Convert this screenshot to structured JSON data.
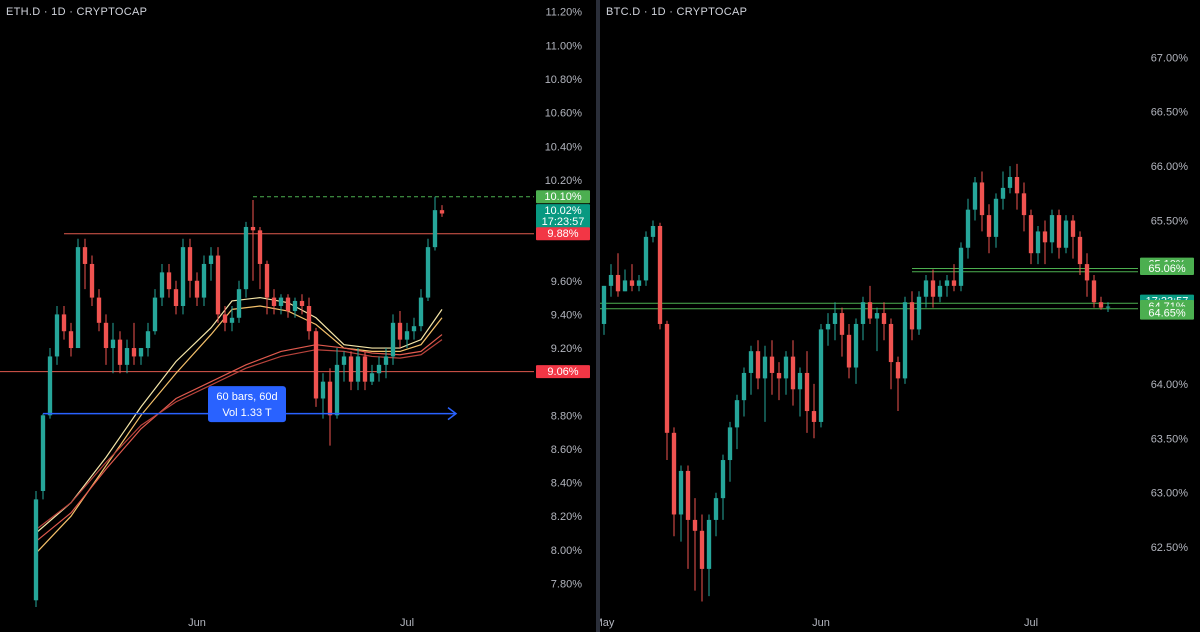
{
  "colors": {
    "up": "#26a69a",
    "down": "#ef5350",
    "ma_yellow": "#f5e6a8",
    "ma_orange": "#f4c06a",
    "ma_red1": "#e05a4e",
    "ma_red2": "#b8433c",
    "range_blue": "#2962ff",
    "label_green": "#4caf50",
    "label_teal": "#089981",
    "label_red": "#f23645"
  },
  "chart_data": [
    {
      "type": "candlestick",
      "title": "ETH.D · 1D · CRYPTOCAP",
      "y_unit": "%",
      "ylim": [
        7.66,
        11.24
      ],
      "y_ticks": [
        "11.20%",
        "11.00%",
        "10.80%",
        "10.60%",
        "10.40%",
        "10.20%",
        "9.60%",
        "9.40%",
        "9.20%",
        "8.80%",
        "8.60%",
        "8.40%",
        "8.20%",
        "8.00%",
        "7.80%"
      ],
      "y_tick_values": [
        11.2,
        11.0,
        10.8,
        10.6,
        10.4,
        10.2,
        9.6,
        9.4,
        9.2,
        8.8,
        8.6,
        8.4,
        8.2,
        8.0,
        7.8
      ],
      "x_ticks": [
        {
          "label": "Jun",
          "index": 23
        },
        {
          "label": "Jul",
          "index": 53
        }
      ],
      "candles": [
        [
          7.7,
          8.35,
          8.3,
          7.66
        ],
        [
          8.35,
          8.81,
          8.8,
          8.3
        ],
        [
          8.8,
          9.2,
          9.15,
          8.78
        ],
        [
          9.15,
          9.45,
          9.4,
          9.1
        ],
        [
          9.4,
          9.45,
          9.3,
          9.25
        ],
        [
          9.3,
          9.35,
          9.2,
          9.15
        ],
        [
          9.2,
          9.85,
          9.8,
          9.2
        ],
        [
          9.8,
          9.85,
          9.7,
          9.55
        ],
        [
          9.7,
          9.75,
          9.5,
          9.45
        ],
        [
          9.5,
          9.55,
          9.35,
          9.3
        ],
        [
          9.35,
          9.4,
          9.2,
          9.1
        ],
        [
          9.2,
          9.35,
          9.25,
          9.05
        ],
        [
          9.25,
          9.3,
          9.1,
          9.05
        ],
        [
          9.1,
          9.25,
          9.2,
          9.05
        ],
        [
          9.2,
          9.35,
          9.15,
          9.1
        ],
        [
          9.15,
          9.2,
          9.2,
          9.1
        ],
        [
          9.2,
          9.35,
          9.3,
          9.15
        ],
        [
          9.3,
          9.55,
          9.5,
          9.28
        ],
        [
          9.5,
          9.7,
          9.65,
          9.45
        ],
        [
          9.65,
          9.7,
          9.55,
          9.5
        ],
        [
          9.55,
          9.6,
          9.45,
          9.4
        ],
        [
          9.45,
          9.85,
          9.8,
          9.4
        ],
        [
          9.8,
          9.85,
          9.6,
          9.5
        ],
        [
          9.6,
          9.65,
          9.5,
          9.45
        ],
        [
          9.5,
          9.75,
          9.7,
          9.45
        ],
        [
          9.7,
          9.8,
          9.75,
          9.6
        ],
        [
          9.75,
          9.8,
          9.4,
          9.35
        ],
        [
          9.4,
          9.45,
          9.35,
          9.3
        ],
        [
          9.35,
          9.45,
          9.38,
          9.3
        ],
        [
          9.38,
          9.6,
          9.55,
          9.35
        ],
        [
          9.55,
          9.95,
          9.92,
          9.5
        ],
        [
          9.92,
          10.08,
          9.9,
          9.6
        ],
        [
          9.9,
          9.92,
          9.7,
          9.55
        ],
        [
          9.7,
          9.72,
          9.5,
          9.4
        ],
        [
          9.5,
          9.55,
          9.45,
          9.4
        ],
        [
          9.45,
          9.52,
          9.5,
          9.4
        ],
        [
          9.5,
          9.52,
          9.42,
          9.38
        ],
        [
          9.42,
          9.5,
          9.48,
          9.38
        ],
        [
          9.48,
          9.52,
          9.45,
          9.4
        ],
        [
          9.45,
          9.5,
          9.3,
          9.25
        ],
        [
          9.3,
          9.32,
          8.9,
          8.85
        ],
        [
          8.9,
          9.05,
          9.0,
          8.78
        ],
        [
          9.0,
          9.08,
          8.8,
          8.62
        ],
        [
          8.8,
          9.2,
          9.1,
          8.78
        ],
        [
          9.1,
          9.18,
          9.15,
          9.0
        ],
        [
          9.15,
          9.18,
          9.0,
          8.95
        ],
        [
          9.0,
          9.2,
          9.15,
          8.95
        ],
        [
          9.15,
          9.18,
          9.0,
          8.95
        ],
        [
          9.0,
          9.1,
          9.05,
          8.98
        ],
        [
          9.05,
          9.15,
          9.1,
          9.0
        ],
        [
          9.1,
          9.2,
          9.15,
          9.02
        ],
        [
          9.15,
          9.4,
          9.35,
          9.1
        ],
        [
          9.35,
          9.42,
          9.25,
          9.2
        ],
        [
          9.25,
          9.35,
          9.3,
          9.2
        ],
        [
          9.3,
          9.38,
          9.33,
          9.25
        ],
        [
          9.33,
          9.55,
          9.5,
          9.3
        ],
        [
          9.5,
          9.85,
          9.8,
          9.48
        ],
        [
          9.8,
          10.1,
          10.02,
          9.78
        ],
        [
          10.02,
          10.05,
          10.0,
          9.98
        ]
      ],
      "ma_lines": [
        {
          "name": "",
          "color_key": "ma_yellow",
          "points": [
            [
              0,
              8.1
            ],
            [
              5,
              8.28
            ],
            [
              10,
              8.55
            ],
            [
              15,
              8.85
            ],
            [
              20,
              9.12
            ],
            [
              25,
              9.32
            ],
            [
              28,
              9.48
            ],
            [
              32,
              9.5
            ],
            [
              36,
              9.47
            ],
            [
              40,
              9.38
            ],
            [
              44,
              9.22
            ],
            [
              48,
              9.2
            ],
            [
              52,
              9.2
            ],
            [
              55,
              9.25
            ],
            [
              58,
              9.43
            ]
          ]
        },
        {
          "name": "",
          "color_key": "ma_orange",
          "points": [
            [
              0,
              7.98
            ],
            [
              5,
              8.2
            ],
            [
              10,
              8.5
            ],
            [
              15,
              8.8
            ],
            [
              20,
              9.05
            ],
            [
              25,
              9.28
            ],
            [
              28,
              9.43
            ],
            [
              32,
              9.45
            ],
            [
              36,
              9.42
            ],
            [
              40,
              9.34
            ],
            [
              44,
              9.2
            ],
            [
              48,
              9.18
            ],
            [
              52,
              9.18
            ],
            [
              55,
              9.22
            ],
            [
              58,
              9.38
            ]
          ]
        },
        {
          "name": "",
          "color_key": "ma_red1",
          "points": [
            [
              0,
              8.05
            ],
            [
              5,
              8.22
            ],
            [
              10,
              8.48
            ],
            [
              15,
              8.72
            ],
            [
              20,
              8.9
            ],
            [
              25,
              9.0
            ],
            [
              30,
              9.1
            ],
            [
              35,
              9.18
            ],
            [
              40,
              9.22
            ],
            [
              44,
              9.2
            ],
            [
              48,
              9.17
            ],
            [
              52,
              9.16
            ],
            [
              55,
              9.18
            ],
            [
              58,
              9.28
            ]
          ]
        },
        {
          "name": "",
          "color_key": "ma_red2",
          "points": [
            [
              0,
              8.12
            ],
            [
              5,
              8.28
            ],
            [
              10,
              8.52
            ],
            [
              15,
              8.74
            ],
            [
              20,
              8.88
            ],
            [
              25,
              8.98
            ],
            [
              30,
              9.08
            ],
            [
              35,
              9.15
            ],
            [
              40,
              9.19
            ],
            [
              44,
              9.18
            ],
            [
              48,
              9.15
            ],
            [
              52,
              9.14
            ],
            [
              55,
              9.16
            ],
            [
              58,
              9.25
            ]
          ]
        }
      ],
      "hlines": [
        {
          "value": 9.88,
          "from_index": 4,
          "color_key": "ma_red1",
          "dashed": false
        },
        {
          "value": 9.06,
          "from_index": -6,
          "color_key": "ma_red1",
          "dashed": false
        },
        {
          "value": 10.1,
          "from_index": 31,
          "color_key": "label_green",
          "dashed": true
        }
      ],
      "range_arrow": {
        "y": 8.81,
        "from_index": 1,
        "to_index": 60
      },
      "range_box": {
        "line1": "60 bars, 60d",
        "line2": "Vol 1.33 T",
        "x_index": 30,
        "y": 8.95
      },
      "price_labels": [
        {
          "text": "10.10%",
          "value": 10.1,
          "color_key": "label_green"
        },
        {
          "text": "10.02%",
          "sub": "17:23:57",
          "value": 10.02,
          "color_key": "label_teal"
        },
        {
          "text": "9.88%",
          "value": 9.88,
          "color_key": "label_red"
        },
        {
          "text": "9.06%",
          "value": 9.06,
          "color_key": "label_red"
        }
      ]
    },
    {
      "type": "candlestick",
      "title": "BTC.D · 1D · CRYPTOCAP",
      "y_unit": "%",
      "ylim": [
        61.95,
        67.48
      ],
      "y_ticks": [
        "67.00%",
        "66.50%",
        "66.00%",
        "65.50%",
        "64.00%",
        "63.50%",
        "63.00%",
        "62.50%"
      ],
      "y_tick_values": [
        67.0,
        66.5,
        66.0,
        65.5,
        64.0,
        63.5,
        63.0,
        62.5
      ],
      "x_ticks": [
        {
          "label": "May",
          "index": 0
        },
        {
          "label": "Jun",
          "index": 31
        },
        {
          "label": "Jul",
          "index": 61
        }
      ],
      "candles": [
        [
          64.55,
          64.9,
          64.9,
          64.45
        ],
        [
          64.9,
          65.1,
          65.0,
          64.8
        ],
        [
          65.0,
          65.2,
          64.85,
          64.8
        ],
        [
          64.85,
          65.05,
          64.95,
          64.85
        ],
        [
          64.95,
          65.1,
          64.9,
          64.85
        ],
        [
          64.9,
          65.0,
          64.95,
          64.85
        ],
        [
          64.95,
          65.4,
          65.35,
          64.9
        ],
        [
          65.35,
          65.5,
          65.45,
          65.3
        ],
        [
          65.45,
          65.48,
          64.55,
          64.5
        ],
        [
          64.55,
          64.58,
          63.55,
          63.3
        ],
        [
          63.55,
          63.6,
          62.8,
          62.6
        ],
        [
          62.8,
          63.25,
          63.2,
          62.55
        ],
        [
          63.2,
          63.25,
          62.75,
          62.3
        ],
        [
          62.75,
          62.95,
          62.65,
          62.1
        ],
        [
          62.65,
          62.8,
          62.3,
          62.0
        ],
        [
          62.3,
          62.8,
          62.75,
          62.05
        ],
        [
          62.75,
          63.0,
          62.95,
          62.6
        ],
        [
          62.95,
          63.35,
          63.3,
          62.75
        ],
        [
          63.3,
          63.65,
          63.6,
          63.1
        ],
        [
          63.6,
          63.9,
          63.85,
          63.4
        ],
        [
          63.85,
          64.15,
          64.1,
          63.7
        ],
        [
          64.1,
          64.35,
          64.3,
          63.9
        ],
        [
          64.3,
          64.4,
          64.05,
          63.95
        ],
        [
          64.05,
          64.35,
          64.25,
          63.65
        ],
        [
          64.25,
          64.4,
          64.1,
          63.9
        ],
        [
          64.1,
          64.2,
          64.05,
          63.85
        ],
        [
          64.05,
          64.3,
          64.25,
          63.9
        ],
        [
          64.25,
          64.4,
          63.95,
          63.8
        ],
        [
          63.95,
          64.15,
          64.1,
          63.7
        ],
        [
          64.1,
          64.3,
          63.75,
          63.55
        ],
        [
          63.75,
          64.0,
          63.65,
          63.5
        ],
        [
          63.65,
          64.55,
          64.5,
          63.6
        ],
        [
          64.5,
          64.65,
          64.55,
          64.35
        ],
        [
          64.55,
          64.75,
          64.65,
          64.4
        ],
        [
          64.65,
          64.7,
          64.45,
          64.25
        ],
        [
          64.45,
          64.55,
          64.15,
          64.05
        ],
        [
          64.15,
          64.6,
          64.55,
          64.0
        ],
        [
          64.55,
          64.8,
          64.75,
          64.4
        ],
        [
          64.75,
          64.9,
          64.6,
          64.55
        ],
        [
          64.6,
          64.7,
          64.65,
          64.3
        ],
        [
          64.65,
          64.75,
          64.55,
          64.4
        ],
        [
          64.55,
          64.6,
          64.2,
          63.95
        ],
        [
          64.2,
          64.25,
          64.05,
          63.75
        ],
        [
          64.05,
          64.8,
          64.75,
          64.0
        ],
        [
          64.75,
          64.85,
          64.5,
          64.4
        ],
        [
          64.5,
          64.85,
          64.8,
          64.45
        ],
        [
          64.8,
          65.0,
          64.95,
          64.7
        ],
        [
          64.95,
          65.05,
          64.8,
          64.7
        ],
        [
          64.8,
          64.95,
          64.9,
          64.75
        ],
        [
          64.9,
          65.0,
          64.95,
          64.8
        ],
        [
          64.95,
          65.1,
          64.9,
          64.85
        ],
        [
          64.9,
          65.3,
          65.25,
          64.85
        ],
        [
          65.25,
          65.7,
          65.6,
          65.15
        ],
        [
          65.6,
          65.9,
          65.85,
          65.5
        ],
        [
          65.85,
          65.95,
          65.55,
          65.4
        ],
        [
          65.55,
          65.65,
          65.35,
          65.2
        ],
        [
          65.35,
          65.75,
          65.7,
          65.25
        ],
        [
          65.7,
          65.95,
          65.8,
          65.6
        ],
        [
          65.8,
          66.0,
          65.9,
          65.75
        ],
        [
          65.9,
          66.02,
          65.75,
          65.6
        ],
        [
          65.75,
          65.85,
          65.55,
          65.4
        ],
        [
          65.55,
          65.6,
          65.2,
          65.1
        ],
        [
          65.2,
          65.45,
          65.4,
          65.1
        ],
        [
          65.4,
          65.5,
          65.3,
          65.1
        ],
        [
          65.3,
          65.6,
          65.55,
          65.2
        ],
        [
          65.55,
          65.6,
          65.25,
          65.15
        ],
        [
          65.25,
          65.55,
          65.5,
          65.2
        ],
        [
          65.5,
          65.55,
          65.35,
          65.15
        ],
        [
          65.35,
          65.4,
          65.1,
          65.0
        ],
        [
          65.1,
          65.2,
          64.95,
          64.8
        ],
        [
          64.95,
          65.0,
          64.75,
          64.7
        ],
        [
          64.75,
          64.8,
          64.7,
          64.68
        ],
        [
          64.7,
          64.75,
          64.71,
          64.66
        ]
      ],
      "hlines": [
        {
          "value": 65.06,
          "from_index": 44,
          "color_key": "label_green",
          "dashed": false
        },
        {
          "value": 65.03,
          "from_index": 44,
          "color_key": "label_green",
          "dashed": false
        },
        {
          "value": 64.74,
          "from_index": -1,
          "color_key": "label_green",
          "dashed": false
        },
        {
          "value": 64.69,
          "from_index": -1,
          "color_key": "label_green",
          "dashed": false
        }
      ],
      "price_labels": [
        {
          "text": "65.10%",
          "value": 65.1,
          "color_key": "label_green"
        },
        {
          "text": "65.06%",
          "value": 65.06,
          "color_key": "label_green"
        },
        {
          "text": "17:23:57",
          "value": 64.76,
          "color_key": "label_teal"
        },
        {
          "text": "64.71%",
          "value": 64.71,
          "color_key": "label_green"
        },
        {
          "text": "64.65%",
          "value": 64.65,
          "color_key": "label_green"
        }
      ]
    }
  ]
}
